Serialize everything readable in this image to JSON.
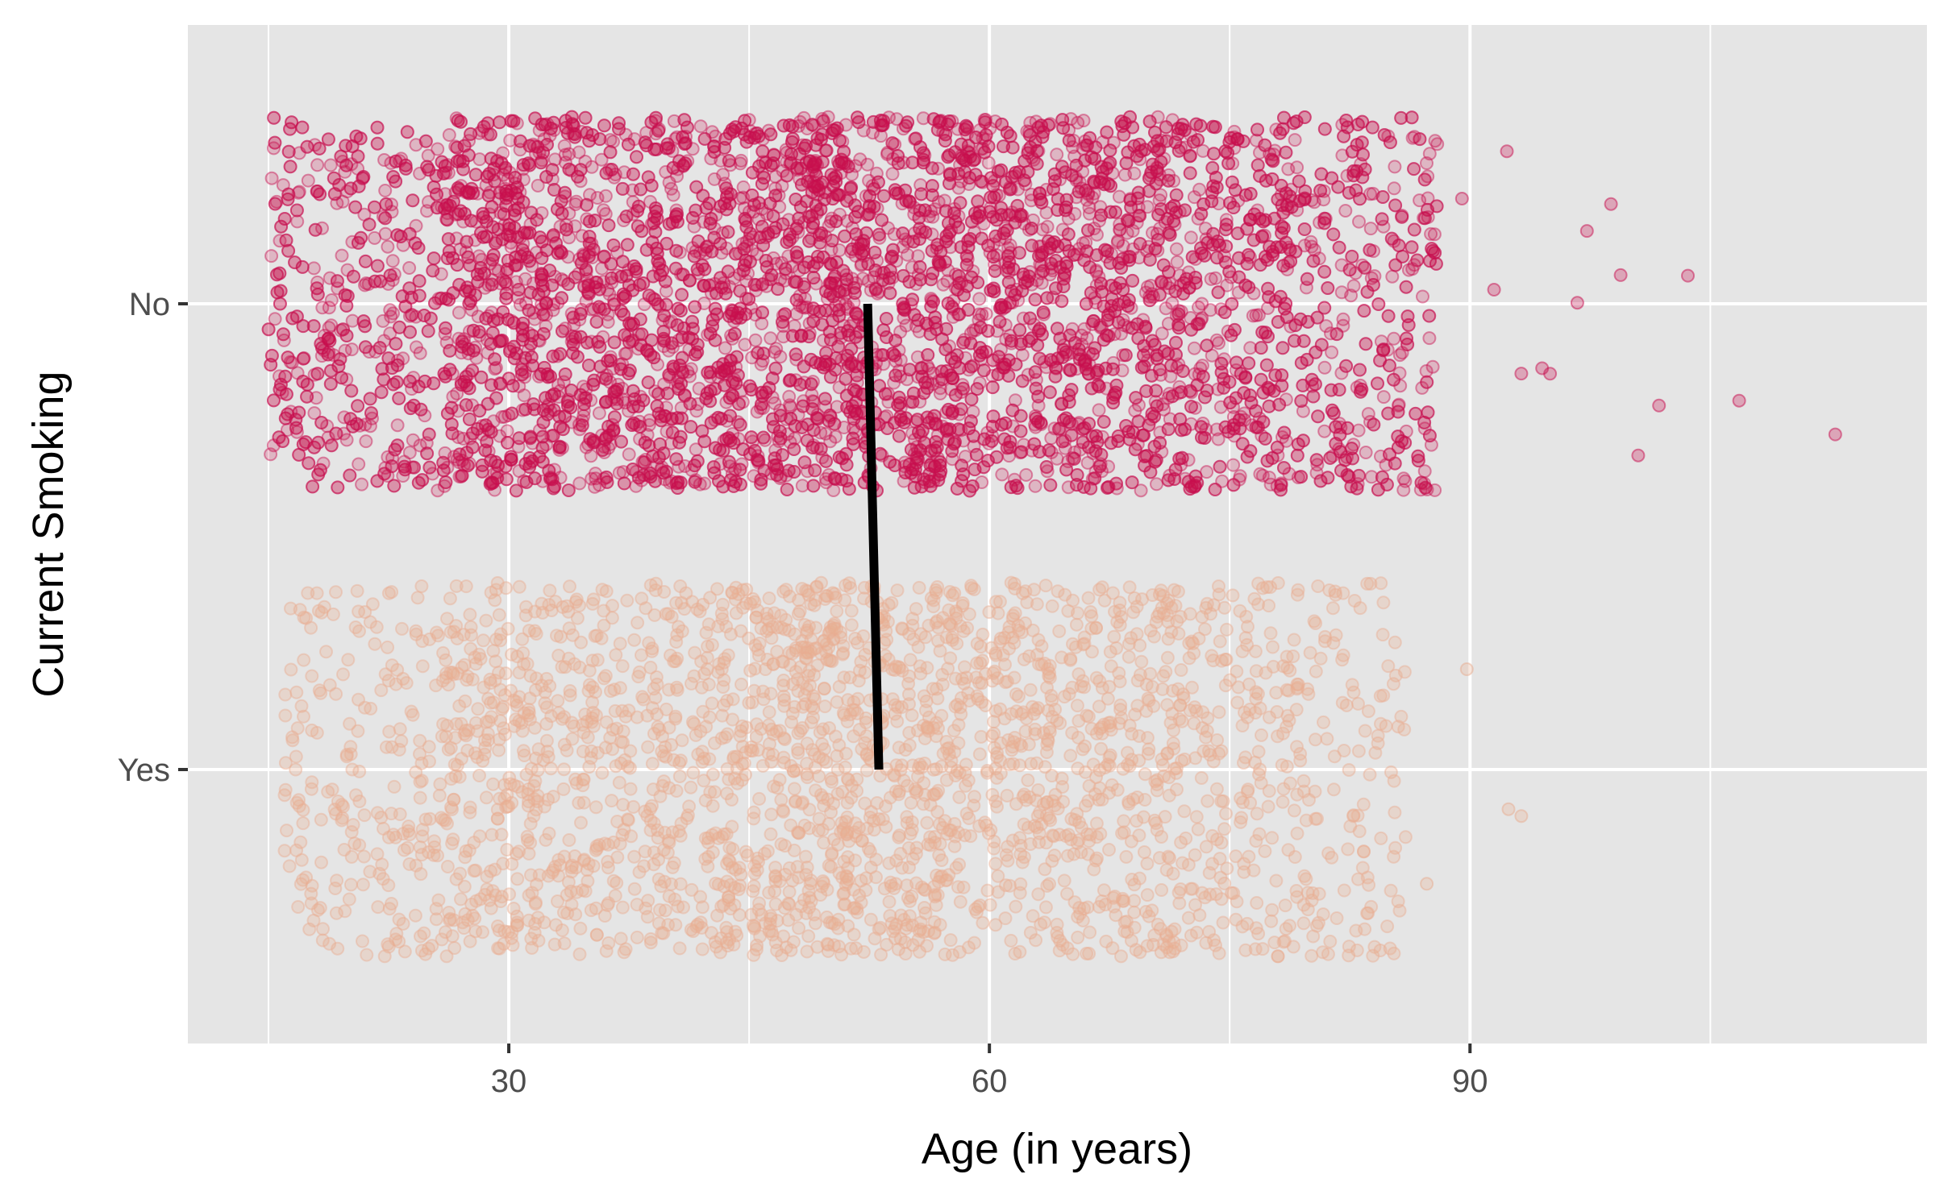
{
  "chart_data": {
    "type": "scatter",
    "title": "",
    "xlabel": "Age (in years)",
    "ylabel": "Current Smoking",
    "xlim": [
      10,
      116
    ],
    "x_ticks": [
      30,
      60,
      90
    ],
    "x_tick_labels": [
      "30",
      "60",
      "90"
    ],
    "categories": [
      "No",
      "Yes"
    ],
    "grid": true,
    "legend": "none",
    "jitter": "vertical jitter within each category band",
    "series": [
      {
        "category": "No",
        "color": "#C8104F",
        "x_range": [
          15,
          88
        ],
        "approx_points": 6000,
        "sparse_outliers": [
          89.5,
          91.5,
          92.3,
          93.2,
          94.5,
          96.7,
          98.8,
          101.8,
          103.6,
          106.8,
          112.8,
          95.0,
          97.3,
          99.4,
          100.5
        ]
      },
      {
        "category": "Yes",
        "color": "#E8AE92",
        "x_range": [
          16,
          86
        ],
        "approx_points": 2600,
        "sparse_outliers": [
          87.3,
          89.8,
          92.4,
          93.2
        ]
      }
    ],
    "mean_line": {
      "color": "#000000",
      "points": [
        {
          "category": "No",
          "x": 52.4
        },
        {
          "category": "Yes",
          "x": 53.1
        }
      ]
    }
  }
}
